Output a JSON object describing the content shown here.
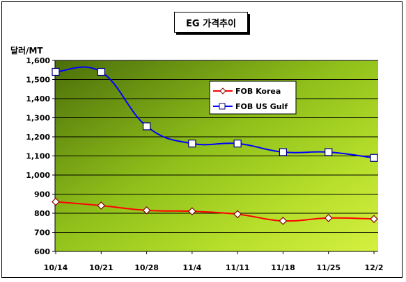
{
  "chart_data": {
    "type": "line",
    "title": "EG 가격추이",
    "ylabel": "달러/MT",
    "xlabel": "",
    "categories": [
      "10/14",
      "10/21",
      "10/28",
      "11/4",
      "11/11",
      "11/18",
      "11/25",
      "12/2"
    ],
    "ylim": [
      600,
      1600
    ],
    "yticks": [
      "600",
      "700",
      "800",
      "900",
      "1,000",
      "1,100",
      "1,200",
      "1,300",
      "1,400",
      "1,500",
      "1,600"
    ],
    "ytick_values": [
      600,
      700,
      800,
      900,
      1000,
      1100,
      1200,
      1300,
      1400,
      1500,
      1600
    ],
    "grid": true,
    "legend_position": "upper-right inside plot",
    "series": [
      {
        "name": "FOB Korea",
        "color": "#ff0000",
        "marker": "diamond",
        "values": [
          860,
          840,
          815,
          810,
          795,
          760,
          775,
          770
        ]
      },
      {
        "name": "FOB US Gulf",
        "color": "#0000ff",
        "marker": "square",
        "values": [
          1540,
          1540,
          1255,
          1165,
          1165,
          1120,
          1120,
          1090
        ]
      }
    ]
  }
}
